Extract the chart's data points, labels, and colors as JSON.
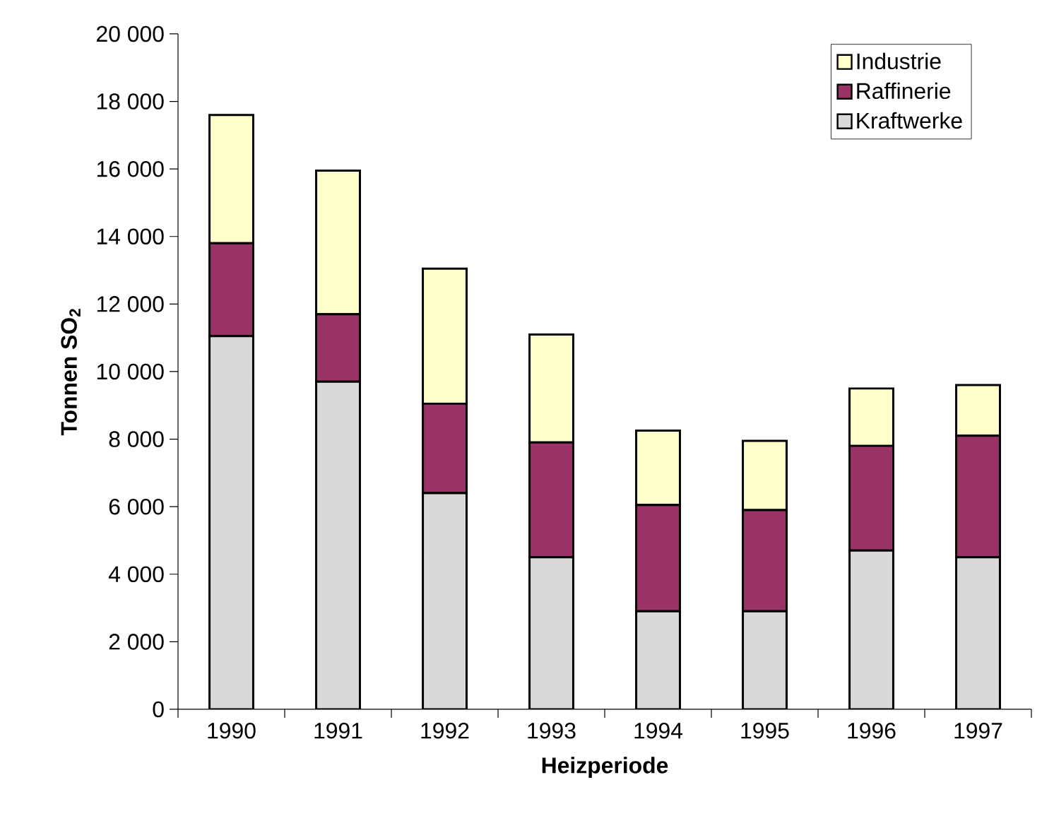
{
  "chart_data": {
    "type": "bar",
    "stacked": true,
    "xlabel": "Heizperiode",
    "ylabel": "Tonnen SO$_{2}$",
    "categories": [
      "1990",
      "1991",
      "1992",
      "1993",
      "1994",
      "1995",
      "1996",
      "1997"
    ],
    "series": [
      {
        "name": "Kraftwerke",
        "color": "#d9d9d9",
        "values": [
          11050,
          9700,
          6400,
          4500,
          2900,
          2900,
          4700,
          4500
        ]
      },
      {
        "name": "Raffinerie",
        "color": "#993366",
        "values": [
          2750,
          2000,
          2650,
          3400,
          3150,
          3000,
          3100,
          3600
        ]
      },
      {
        "name": "Industrie",
        "color": "#ffffcc",
        "values": [
          3800,
          4250,
          4000,
          3200,
          2200,
          2050,
          1700,
          1500
        ]
      }
    ],
    "ylim": [
      0,
      20000
    ],
    "yticks": [
      0,
      {
        "value": 2000,
        "label": "2 000"
      },
      {
        "value": 4000,
        "label": "4 000"
      },
      {
        "value": 6000,
        "label": "6 000"
      },
      {
        "value": 8000,
        "label": "8 000"
      },
      {
        "value": 10000,
        "label": "10 000"
      },
      {
        "value": 12000,
        "label": "12 000"
      },
      {
        "value": 14000,
        "label": "14 000"
      },
      {
        "value": 16000,
        "label": "16 000"
      },
      {
        "value": 18000,
        "label": "18 000"
      },
      {
        "value": 20000,
        "label": "20 000"
      }
    ],
    "legend": "top right",
    "grid": false
  }
}
